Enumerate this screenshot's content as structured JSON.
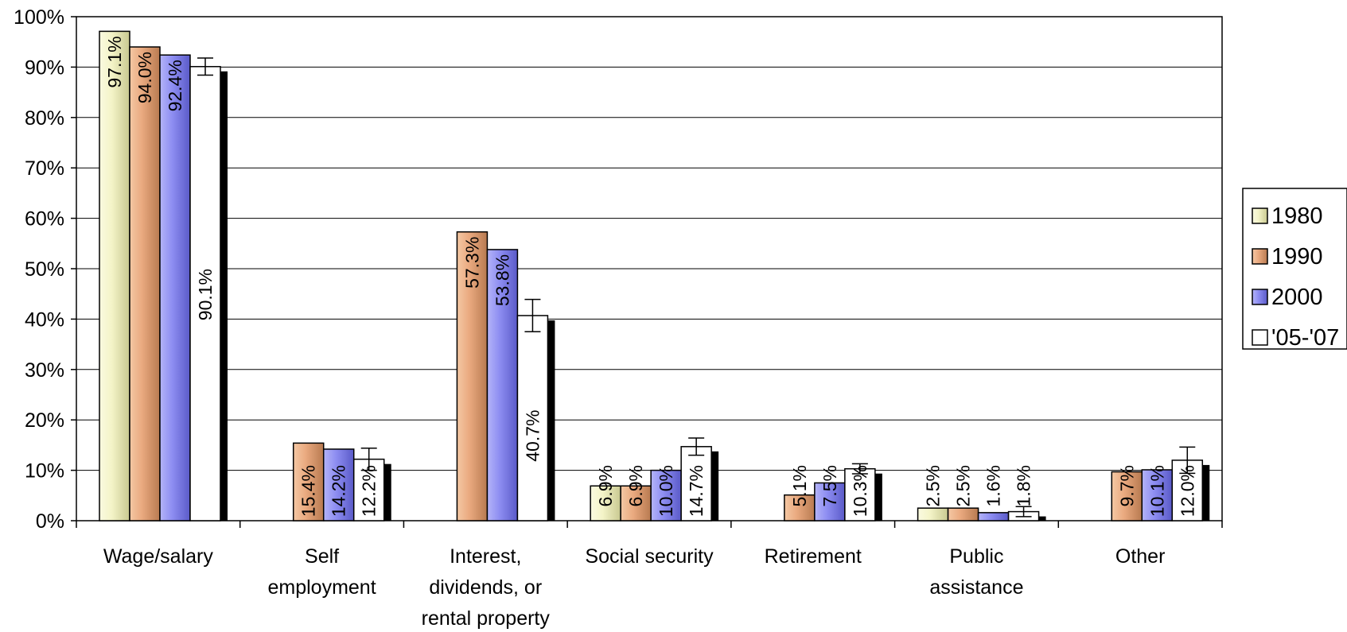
{
  "chart_data": {
    "type": "bar",
    "title": "",
    "xlabel": "",
    "ylabel": "",
    "ylim": [
      0,
      100
    ],
    "y_ticks": [
      "0%",
      "10%",
      "20%",
      "30%",
      "40%",
      "50%",
      "60%",
      "70%",
      "80%",
      "90%",
      "100%"
    ],
    "grid": "horizontal",
    "legend_position": "right",
    "categories": [
      [
        "Wage/salary"
      ],
      [
        "Self",
        "employment"
      ],
      [
        "Interest,",
        "dividends, or",
        "rental property"
      ],
      [
        "Social security"
      ],
      [
        "Retirement"
      ],
      [
        "Public",
        "assistance"
      ],
      [
        "Other"
      ]
    ],
    "series": [
      {
        "name": "1980",
        "color": "#f2f2c0",
        "values": [
          97.1,
          null,
          null,
          6.9,
          null,
          2.5,
          null
        ],
        "labels": [
          "97.1%",
          null,
          null,
          "6.9%",
          null,
          "2.5%",
          null
        ]
      },
      {
        "name": "1990",
        "color": "#e8a87c",
        "values": [
          94.0,
          15.4,
          57.3,
          6.9,
          5.1,
          2.5,
          9.7
        ],
        "labels": [
          "94.0%",
          "15.4%",
          "57.3%",
          "6.9%",
          "5.1%",
          "2.5%",
          "9.7%"
        ]
      },
      {
        "name": "2000",
        "color": "#8c8cf0",
        "values": [
          92.4,
          14.2,
          53.8,
          10.0,
          7.5,
          1.6,
          10.1
        ],
        "labels": [
          "92.4%",
          "14.2%",
          "53.8%",
          "10.0%",
          "7.5%",
          "1.6%",
          "10.1%"
        ]
      },
      {
        "name": "'05-'07",
        "color": "#ffffff",
        "values": [
          90.1,
          12.2,
          40.7,
          14.7,
          10.3,
          1.8,
          12.0
        ],
        "labels": [
          "90.1%",
          "12.2%",
          "40.7%",
          "14.7%",
          "10.3%",
          "1.8%",
          "12.0%"
        ],
        "error": [
          1.7,
          2.2,
          3.2,
          1.7,
          1.0,
          1.0,
          2.6
        ]
      }
    ]
  }
}
